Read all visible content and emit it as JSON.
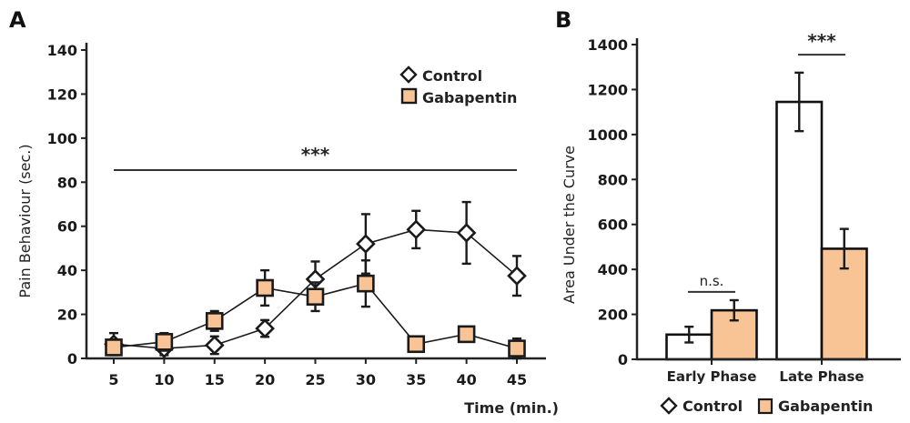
{
  "chart_data": [
    {
      "panel": "A",
      "type": "line",
      "title": "",
      "xlabel": "Time (min.)",
      "ylabel": "Pain Behaviour (sec.)",
      "x": [
        5,
        10,
        15,
        20,
        25,
        30,
        35,
        40,
        45
      ],
      "xticks": [
        "5",
        "10",
        "15",
        "20",
        "25",
        "30",
        "35",
        "40",
        "45"
      ],
      "ylim": [
        0,
        140
      ],
      "yticks": [
        "0",
        "20",
        "40",
        "60",
        "80",
        "100",
        "120",
        "140"
      ],
      "grid": false,
      "legend_position": "top-right",
      "series": [
        {
          "name": "Control",
          "marker": "diamond",
          "fill": "#ffffff",
          "values": [
            6.5,
            4.5,
            6,
            13.6,
            36,
            52,
            58.5,
            57,
            37.5
          ],
          "error": [
            5,
            3,
            4,
            3.8,
            8,
            13.5,
            8.5,
            14,
            9
          ]
        },
        {
          "name": "Gabapentin",
          "marker": "square",
          "fill": "#F8C496",
          "values": [
            5,
            7.5,
            17,
            32,
            28,
            34,
            6.5,
            11,
            4.5
          ],
          "error": [
            3.5,
            4,
            4.5,
            8,
            6.5,
            10.5,
            3,
            3,
            4.5
          ]
        }
      ],
      "annotations": [
        {
          "type": "significance",
          "text": "***",
          "x_from": 5,
          "x_to": 45,
          "y": 85.5
        }
      ]
    },
    {
      "panel": "B",
      "type": "bar",
      "title": "",
      "xlabel": "",
      "ylabel": "Area Under the Curve",
      "categories": [
        "Early Phase",
        "Late Phase"
      ],
      "ylim": [
        0,
        1400
      ],
      "yticks": [
        "0",
        "200",
        "400",
        "600",
        "800",
        "1000",
        "1200",
        "1400"
      ],
      "grid": false,
      "legend_position": "bottom",
      "series": [
        {
          "name": "Control",
          "marker": "diamond",
          "fill": "#ffffff",
          "values": [
            110,
            1145
          ],
          "error": [
            35,
            130
          ]
        },
        {
          "name": "Gabapentin",
          "marker": "square",
          "fill": "#F8C496",
          "values": [
            218,
            492
          ],
          "error": [
            45,
            88
          ]
        }
      ],
      "annotations": [
        {
          "type": "significance",
          "text": "n.s.",
          "category": "Early Phase",
          "y": 300
        },
        {
          "type": "significance",
          "text": "***",
          "category": "Late Phase",
          "y": 1355
        }
      ]
    }
  ],
  "panels": {
    "a_letter": "A",
    "b_letter": "B"
  },
  "colors": {
    "gabapentin": "#F8C496",
    "control": "#ffffff",
    "ink": "#1a1a1a"
  }
}
